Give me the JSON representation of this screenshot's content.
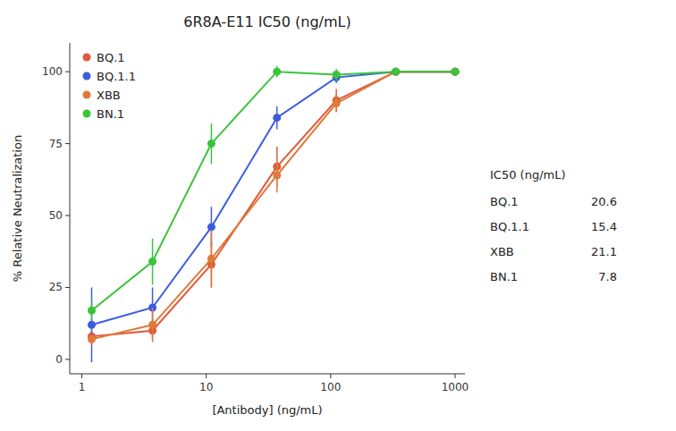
{
  "chart_data": {
    "type": "line",
    "title": "6R8A-E11 IC50 (ng/mL)",
    "x_label": "[Antibody]  (ng/mL)",
    "y_label": "% Relative Neutralization",
    "log": "x",
    "xlim": [
      0.8,
      1200
    ],
    "xticks": [
      1,
      10,
      100,
      1000
    ],
    "ylim": [
      -5,
      110
    ],
    "yticks": [
      0,
      25,
      50,
      75,
      100
    ],
    "grid": false,
    "legend": "upper left",
    "marker": "circle",
    "line_style": "solid",
    "series": [
      {
        "name": "BQ.1",
        "color": "#e05a3a",
        "x": [
          1.2,
          3.7,
          11,
          37,
          111,
          333,
          1000
        ],
        "values": [
          8,
          10,
          33,
          67,
          90,
          100,
          100
        ],
        "errors": [
          2,
          3,
          8,
          7,
          4,
          1,
          1
        ],
        "ic50": 20.6
      },
      {
        "name": "BQ.1.1",
        "color": "#3a5de0",
        "x": [
          1.2,
          3.7,
          11,
          37,
          111,
          333,
          1000
        ],
        "values": [
          12,
          18,
          46,
          84,
          98,
          100,
          100
        ],
        "errors": [
          13,
          7,
          7,
          4,
          2,
          1,
          1
        ],
        "ic50": 15.4
      },
      {
        "name": "XBB",
        "color": "#e07a3a",
        "x": [
          1.2,
          3.7,
          11,
          37,
          111,
          333,
          1000
        ],
        "values": [
          7,
          12,
          35,
          64,
          89,
          100,
          100
        ],
        "errors": [
          2,
          6,
          10,
          6,
          3,
          1,
          1
        ],
        "ic50": 21.1
      },
      {
        "name": "BN.1",
        "color": "#3ac43a",
        "x": [
          1.2,
          3.7,
          11,
          37,
          111,
          333,
          1000
        ],
        "values": [
          17,
          34,
          75,
          100,
          99,
          100,
          100
        ],
        "errors": [
          3,
          8,
          7,
          2,
          2,
          1,
          1
        ],
        "ic50": 7.8
      }
    ],
    "table_title": "IC50 (ng/mL)"
  }
}
